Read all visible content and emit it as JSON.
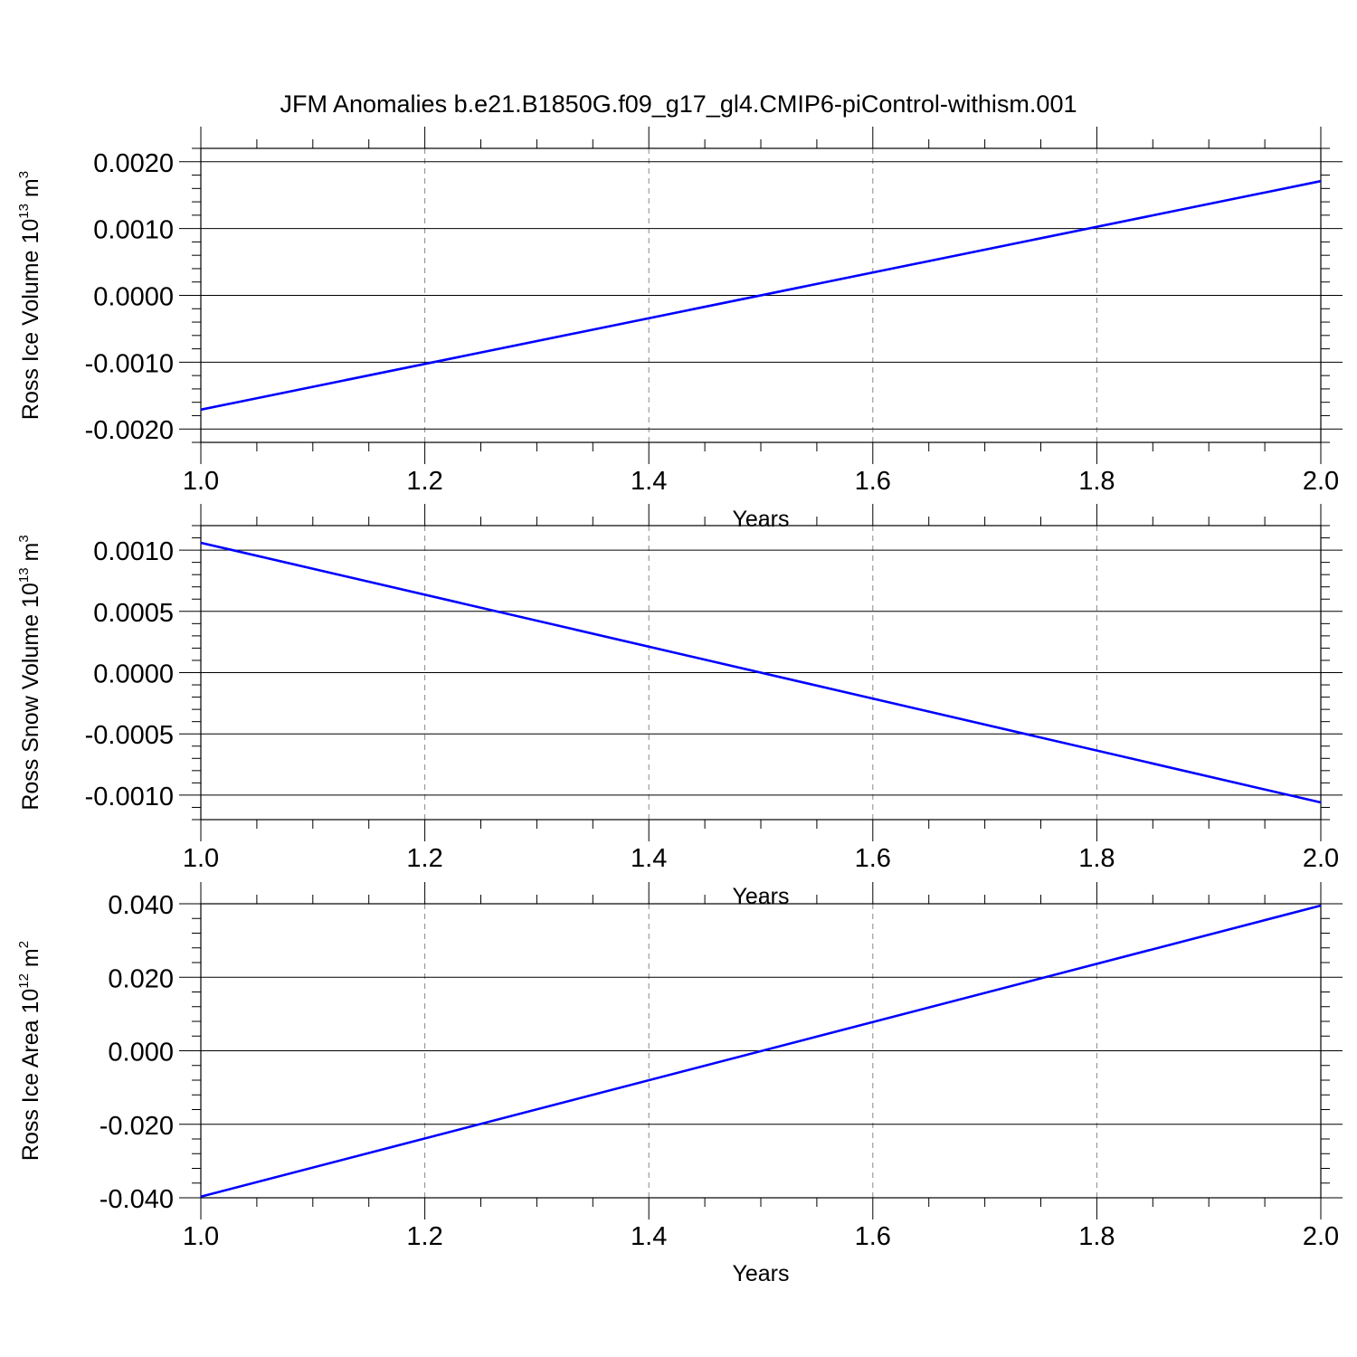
{
  "figure": {
    "title": "JFM Anomalies b.e21.B1850G.f09_g17_gl4.CMIP6-piControl-withism.001"
  },
  "colors": {
    "line": "#0000ff",
    "axis": "#000000",
    "grid": "#888888"
  },
  "chart_data": [
    {
      "type": "line",
      "ylabel": {
        "main": "Ross Ice Volume 10",
        "sup": "13",
        "unit": " m",
        "unit_sup": "3"
      },
      "xlabel": "Years",
      "xlim": [
        1.0,
        2.0
      ],
      "ylim": [
        -0.0022,
        0.0022
      ],
      "x_ticks": [
        1.0,
        1.2,
        1.4,
        1.6,
        1.8,
        2.0
      ],
      "x_tick_labels": [
        "1.0",
        "1.2",
        "1.4",
        "1.6",
        "1.8",
        "2.0"
      ],
      "y_ticks": [
        -0.002,
        -0.001,
        0.0,
        0.001,
        0.002
      ],
      "y_tick_labels": [
        "-0.0020",
        "-0.0010",
        "0.0000",
        "0.0010",
        "0.0020"
      ],
      "grid": "vertical-dashed",
      "series": [
        {
          "x": [
            1.0,
            2.0
          ],
          "y": [
            -0.00171,
            0.00171
          ]
        }
      ]
    },
    {
      "type": "line",
      "ylabel": {
        "main": "Ross Snow Volume 10",
        "sup": "13",
        "unit": " m",
        "unit_sup": "3"
      },
      "xlabel": "Years",
      "xlim": [
        1.0,
        2.0
      ],
      "ylim": [
        -0.0012,
        0.0012
      ],
      "x_ticks": [
        1.0,
        1.2,
        1.4,
        1.6,
        1.8,
        2.0
      ],
      "x_tick_labels": [
        "1.0",
        "1.2",
        "1.4",
        "1.6",
        "1.8",
        "2.0"
      ],
      "y_ticks": [
        -0.001,
        -0.0005,
        0.0,
        0.0005,
        0.001
      ],
      "y_tick_labels": [
        "-0.0010",
        "-0.0005",
        "0.0000",
        "0.0005",
        "0.0010"
      ],
      "grid": "vertical-dashed",
      "series": [
        {
          "x": [
            1.0,
            2.0
          ],
          "y": [
            0.00106,
            -0.00106
          ]
        }
      ]
    },
    {
      "type": "line",
      "ylabel": {
        "main": "Ross Ice Area 10",
        "sup": "12",
        "unit": " m",
        "unit_sup": "2"
      },
      "xlabel": "Years",
      "xlim": [
        1.0,
        2.0
      ],
      "ylim": [
        -0.04,
        0.04
      ],
      "x_ticks": [
        1.0,
        1.2,
        1.4,
        1.6,
        1.8,
        2.0
      ],
      "x_tick_labels": [
        "1.0",
        "1.2",
        "1.4",
        "1.6",
        "1.8",
        "2.0"
      ],
      "y_ticks": [
        -0.04,
        -0.02,
        0.0,
        0.02,
        0.04
      ],
      "y_tick_labels": [
        "-0.040",
        "-0.020",
        "0.000",
        "0.020",
        "0.040"
      ],
      "grid": "vertical-dashed",
      "series": [
        {
          "x": [
            1.0,
            2.0
          ],
          "y": [
            -0.0397,
            0.0395
          ]
        }
      ]
    }
  ]
}
